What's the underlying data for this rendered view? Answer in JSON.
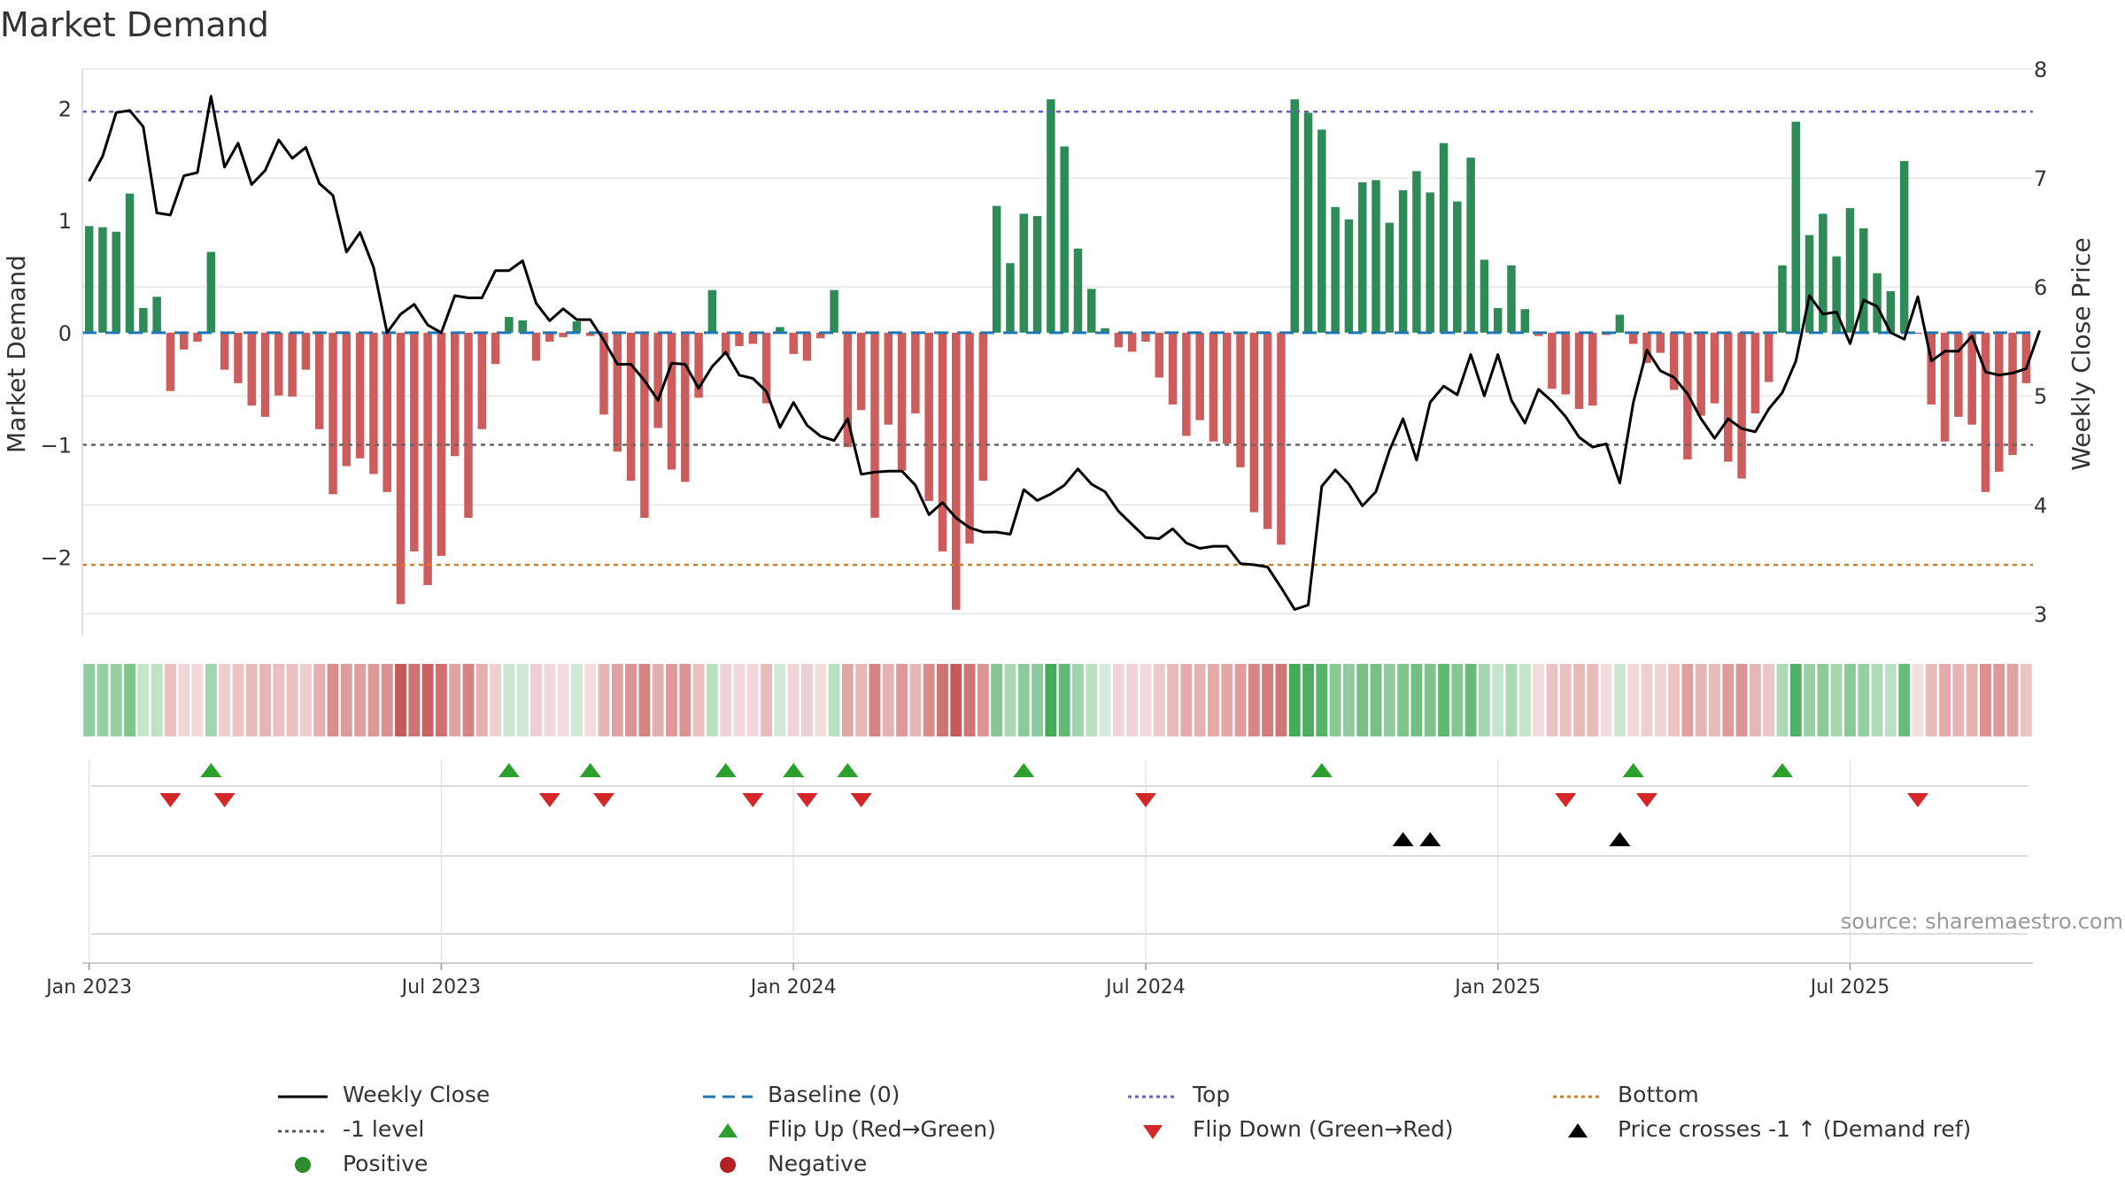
{
  "chart_data": {
    "type": "bar+line",
    "title": "Market Demand",
    "ylabel_left": "Market Demand",
    "ylabel_right": "Weekly Close Price",
    "ylim_left": [
      -2.7,
      2.35
    ],
    "ylim_right": [
      2.8,
      8.0
    ],
    "left_ticks": [
      -2,
      -1,
      0,
      1,
      2
    ],
    "left_tick_labels": [
      "−2",
      "−1",
      "0",
      "1",
      "2"
    ],
    "right_ticks": [
      3,
      4,
      5,
      6,
      7,
      8
    ],
    "x_tick_labels": [
      {
        "label": "Jan 2023",
        "week": 0.5
      },
      {
        "label": "Jul 2023",
        "week": 26.5
      },
      {
        "label": "Jan 2024",
        "week": 52.5
      },
      {
        "label": "Jul 2024",
        "week": 78.5
      },
      {
        "label": "Jan 2025",
        "week": 104.5
      },
      {
        "label": "Jul 2025",
        "week": 130.5
      }
    ],
    "reference_lines": {
      "top": 1.97,
      "minus_one": -1.0,
      "bottom": -2.07,
      "baseline": 0
    },
    "demand": [
      0.95,
      0.94,
      0.9,
      1.24,
      0.22,
      0.32,
      -0.52,
      -0.15,
      -0.08,
      0.72,
      -0.33,
      -0.45,
      -0.65,
      -0.75,
      -0.56,
      -0.57,
      -0.33,
      -0.86,
      -1.44,
      -1.19,
      -1.12,
      -1.26,
      -1.42,
      -2.42,
      -1.95,
      -2.25,
      -1.99,
      -1.1,
      -1.65,
      -0.86,
      -0.28,
      0.14,
      0.11,
      -0.25,
      -0.08,
      -0.04,
      0.1,
      -0.03,
      -0.73,
      -1.06,
      -1.32,
      -1.65,
      -0.85,
      -1.22,
      -1.33,
      -0.58,
      0.38,
      -0.2,
      -0.12,
      -0.1,
      -0.63,
      0.05,
      -0.19,
      -0.25,
      -0.05,
      0.38,
      -1.02,
      -0.69,
      -1.65,
      -0.82,
      -1.23,
      -0.72,
      -1.5,
      -1.95,
      -2.47,
      -1.88,
      -1.32,
      1.13,
      0.62,
      1.06,
      1.04,
      2.08,
      1.66,
      0.75,
      0.39,
      0.04,
      -0.13,
      -0.17,
      -0.08,
      -0.4,
      -0.64,
      -0.92,
      -0.78,
      -0.97,
      -0.99,
      -1.2,
      -1.6,
      -1.75,
      -1.89,
      2.08,
      1.96,
      1.81,
      1.12,
      1.01,
      1.34,
      1.36,
      0.98,
      1.27,
      1.44,
      1.25,
      1.69,
      1.17,
      1.56,
      0.65,
      0.22,
      0.6,
      0.21,
      -0.03,
      -0.5,
      -0.55,
      -0.68,
      -0.65,
      -0.02,
      0.16,
      -0.1,
      -0.27,
      -0.18,
      -0.51,
      -1.13,
      -0.74,
      -0.63,
      -1.15,
      -1.3,
      -0.72,
      -0.44,
      0.6,
      1.88,
      0.87,
      1.06,
      0.68,
      1.11,
      0.93,
      0.53,
      0.37,
      1.53,
      -0.01,
      -0.64,
      -0.97,
      -0.75,
      -0.82,
      -1.42,
      -1.24,
      -1.09,
      -0.45
    ],
    "price": [
      6.97,
      7.2,
      7.6,
      7.62,
      7.47,
      6.68,
      6.66,
      7.02,
      7.05,
      7.75,
      7.1,
      7.32,
      6.94,
      7.07,
      7.35,
      7.18,
      7.28,
      6.95,
      6.84,
      6.32,
      6.5,
      6.18,
      5.58,
      5.75,
      5.84,
      5.65,
      5.58,
      5.92,
      5.9,
      5.9,
      6.15,
      6.15,
      6.24,
      5.85,
      5.69,
      5.8,
      5.7,
      5.7,
      5.51,
      5.29,
      5.29,
      5.14,
      4.96,
      5.3,
      5.29,
      5.07,
      5.27,
      5.4,
      5.19,
      5.16,
      5.04,
      4.71,
      4.94,
      4.73,
      4.63,
      4.59,
      4.79,
      4.28,
      4.3,
      4.31,
      4.31,
      4.18,
      3.91,
      4.02,
      3.88,
      3.79,
      3.75,
      3.75,
      3.73,
      4.14,
      4.04,
      4.1,
      4.18,
      4.33,
      4.19,
      4.12,
      3.94,
      3.82,
      3.7,
      3.69,
      3.78,
      3.65,
      3.6,
      3.62,
      3.62,
      3.46,
      3.45,
      3.43,
      3.24,
      3.04,
      3.08,
      4.17,
      4.32,
      4.19,
      3.99,
      4.12,
      4.5,
      4.79,
      4.41,
      4.94,
      5.09,
      5.01,
      5.38,
      5.0,
      5.38,
      4.96,
      4.75,
      5.06,
      4.95,
      4.81,
      4.62,
      4.53,
      4.56,
      4.2,
      4.94,
      5.42,
      5.23,
      5.17,
      5.02,
      4.79,
      4.61,
      4.79,
      4.7,
      4.67,
      4.88,
      5.03,
      5.32,
      5.92,
      5.75,
      5.77,
      5.48,
      5.88,
      5.82,
      5.58,
      5.52,
      5.91,
      5.32,
      5.41,
      5.41,
      5.55,
      5.22,
      5.19,
      5.21,
      5.25,
      5.6
    ],
    "flip_up_weeks": [
      9,
      31,
      37,
      47,
      52,
      56,
      69,
      91,
      114,
      125
    ],
    "flip_down_weeks": [
      6,
      10,
      34,
      38,
      49,
      53,
      57,
      78,
      109,
      115,
      135
    ],
    "cross_weeks": [
      97,
      99,
      113
    ],
    "legend": [
      {
        "label": "Weekly Close",
        "symbol": "line-solid",
        "color": "#000000"
      },
      {
        "label": "Baseline (0)",
        "symbol": "line-dashed",
        "color": "#1f77b4"
      },
      {
        "label": "Top",
        "symbol": "line-dotted",
        "color": "#6a5acd"
      },
      {
        "label": "Bottom",
        "symbol": "line-dotted",
        "color": "#d4801e"
      },
      {
        "label": "-1 level",
        "symbol": "line-dotted",
        "color": "#555555"
      },
      {
        "label": "Flip Up (Red→Green)",
        "symbol": "triangle-up",
        "color": "#2ca02c"
      },
      {
        "label": "Flip Down (Green→Red)",
        "symbol": "triangle-down",
        "color": "#d62728"
      },
      {
        "label": "Price crosses -1 ↑ (Demand ref)",
        "symbol": "triangle-up",
        "color": "#000000"
      },
      {
        "label": "Positive",
        "symbol": "circle",
        "color": "#2e8b2e"
      },
      {
        "label": "Negative",
        "symbol": "circle",
        "color": "#b22222"
      }
    ],
    "source": "source: sharemaestro.com"
  },
  "colors": {
    "positive_bar": "#2e8b57",
    "negative_bar": "#cd5c5c",
    "price_line": "#000000",
    "grid": "#e6e6e6"
  }
}
